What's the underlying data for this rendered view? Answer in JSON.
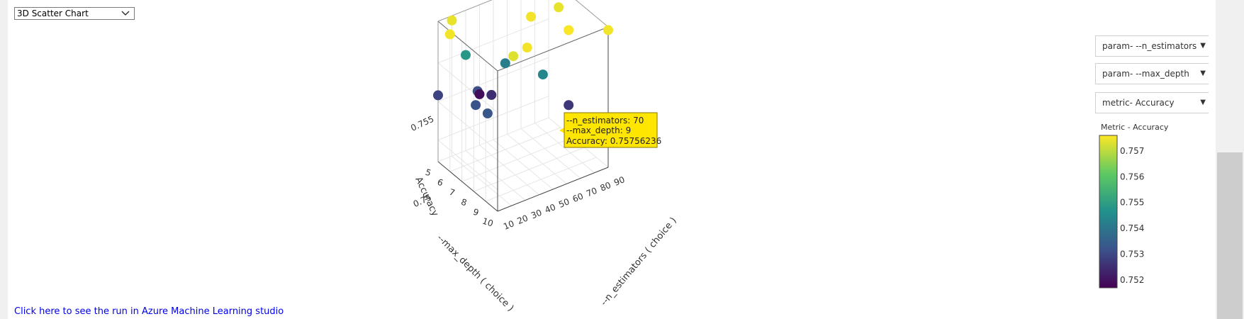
{
  "toolbar": {
    "chart_type": "3D Scatter Chart",
    "chart_type_icon": "chevron-down-icon"
  },
  "dropdowns": {
    "x_param": "param- --n_estimators",
    "y_param": "param- --max_depth",
    "z_metric": "metric- Accuracy",
    "arrow_icon": "triangle-down-icon"
  },
  "colorbar": {
    "title": "Metric - Accuracy",
    "ticks": [
      "0.757",
      "0.756",
      "0.755",
      "0.754",
      "0.753",
      "0.752"
    ],
    "tick_values": [
      0.757,
      0.756,
      0.755,
      0.754,
      0.753,
      0.752
    ],
    "range": [
      0.7517,
      0.7576
    ],
    "colorscale": [
      "#440154",
      "#3b528b",
      "#21918c",
      "#5ec962",
      "#fde725"
    ]
  },
  "tooltip": {
    "line1": "--n_estimators: 70",
    "line2": "--max_depth: 9",
    "line3": "Accuracy: 0.75756236",
    "bg_color": "#ffe600",
    "border_color": "#8a7600"
  },
  "link": {
    "text": "Click here to see the run in Azure Machine Learning studio"
  },
  "chart_data": {
    "type": "scatter",
    "projection": "3d",
    "x_axis": {
      "title": "--n_estimators ( choice )",
      "ticks": [
        "10",
        "20",
        "30",
        "40",
        "50",
        "60",
        "70",
        "80",
        "90"
      ]
    },
    "y_axis": {
      "title": "--max_depth ( choice )",
      "ticks": [
        "5",
        "6",
        "7",
        "8",
        "9",
        "10"
      ]
    },
    "z_axis": {
      "title": "Accuracy",
      "ticks": [
        "0.75",
        "0.755"
      ]
    },
    "grid": true,
    "legend": "colorbar-right",
    "points": [
      {
        "n_estimators": 70,
        "max_depth": 9,
        "accuracy": 0.75756
      },
      {
        "n_estimators": 20,
        "max_depth": 5,
        "accuracy": 0.7574
      },
      {
        "n_estimators": 50,
        "max_depth": 6,
        "accuracy": 0.7542
      },
      {
        "n_estimators": 40,
        "max_depth": 5,
        "accuracy": 0.7519
      },
      {
        "n_estimators": 60,
        "max_depth": 7,
        "accuracy": 0.7575
      },
      {
        "n_estimators": 30,
        "max_depth": 6,
        "accuracy": 0.7531
      },
      {
        "n_estimators": 10,
        "max_depth": 5,
        "accuracy": 0.7529
      },
      {
        "n_estimators": 90,
        "max_depth": 6,
        "accuracy": 0.7574
      },
      {
        "n_estimators": 80,
        "max_depth": 7,
        "accuracy": 0.7574
      },
      {
        "n_estimators": 60,
        "max_depth": 8,
        "accuracy": 0.7544
      },
      {
        "n_estimators": 40,
        "max_depth": 9,
        "accuracy": 0.7575
      },
      {
        "n_estimators": 30,
        "max_depth": 9,
        "accuracy": 0.7573
      },
      {
        "n_estimators": 70,
        "max_depth": 9,
        "accuracy": 0.7527
      },
      {
        "n_estimators": 20,
        "max_depth": 8,
        "accuracy": 0.7533
      },
      {
        "n_estimators": 40,
        "max_depth": 6,
        "accuracy": 0.7525
      },
      {
        "n_estimators": 20,
        "max_depth": 7,
        "accuracy": 0.7532
      },
      {
        "n_estimators": 10,
        "max_depth": 6,
        "accuracy": 0.7575
      },
      {
        "n_estimators": 30,
        "max_depth": 5,
        "accuracy": 0.7548
      },
      {
        "n_estimators": 80,
        "max_depth": 5,
        "accuracy": 0.7576
      },
      {
        "n_estimators": 90,
        "max_depth": 10,
        "accuracy": 0.7575
      }
    ]
  }
}
